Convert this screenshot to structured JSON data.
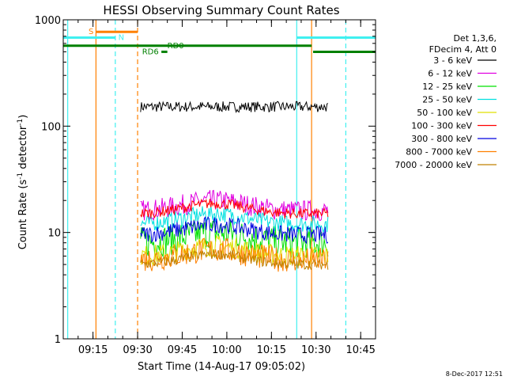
{
  "footer_timestamp": "8-Dec-2017 12:51",
  "colors": {
    "black": "#000000",
    "magenta": "#e000e0",
    "green": "#00e000",
    "cyan": "#00e0e0",
    "yellow": "#e0e000",
    "red": "#ff0000",
    "blue": "#0000e0",
    "orange": "#ff8000",
    "brown": "#c08000",
    "dark_green": "#008000",
    "light_cyan": "#40f0f0",
    "axis": "#000000"
  },
  "chart_data": {
    "type": "line",
    "title": "HESSI Observing Summary Count Rates",
    "xlabel": "Start Time (14-Aug-17 09:05:02)",
    "ylabel_prefix": "Count Rate (s",
    "ylabel_exp": "-1",
    "ylabel_mid": " detector",
    "ylabel_suffix": ")",
    "yscale": "log",
    "ylim": [
      1,
      1000
    ],
    "x_ticks": [
      "09:15",
      "09:30",
      "09:45",
      "10:00",
      "10:15",
      "10:30",
      "10:45"
    ],
    "x_tick_minutes": [
      15,
      30,
      45,
      60,
      75,
      90,
      105
    ],
    "xlim_minutes": [
      5,
      110
    ],
    "y_ticks": [
      "1",
      "10",
      "100",
      "1000"
    ],
    "y_tick_values": [
      1,
      10,
      100,
      1000
    ],
    "legend_header": [
      "Det 1,3,6,",
      "FDecim 4, Att 0"
    ],
    "data_window_minutes": [
      31,
      94
    ],
    "series": [
      {
        "name": "3 - 6 keV",
        "color": "#000000",
        "level": 152,
        "noise": 0.05
      },
      {
        "name": "6 - 12 keV",
        "color": "#e000e0",
        "level": 16,
        "noise": 0.1
      },
      {
        "name": "12 - 25 keV",
        "color": "#00e000",
        "level": 8,
        "noise": 0.15
      },
      {
        "name": "25 - 50 keV",
        "color": "#00e0e0",
        "level": 12,
        "noise": 0.08
      },
      {
        "name": "50 - 100 keV",
        "color": "#e0e000",
        "level": 6,
        "noise": 0.1
      },
      {
        "name": "100 - 300 keV",
        "color": "#ff0000",
        "level": 15,
        "noise": 0.05
      },
      {
        "name": "300 - 800 keV",
        "color": "#0000e0",
        "level": 9.5,
        "noise": 0.08
      },
      {
        "name": "800 - 7000 keV",
        "color": "#ff8000",
        "level": 5.5,
        "noise": 0.12
      },
      {
        "name": "7000 - 20000 keV",
        "color": "#c08000",
        "level": 5,
        "noise": 0.05
      }
    ],
    "bump_center_minutes": 56,
    "bump_width_minutes": 14,
    "bump_amplitude": 0.25,
    "vertical_lines": [
      {
        "minute": 6.5,
        "color": "#40f0f0",
        "dash": false
      },
      {
        "minute": 16,
        "color": "#ff8000",
        "dash": false
      },
      {
        "minute": 22.5,
        "color": "#40f0f0",
        "dash": true
      },
      {
        "minute": 30,
        "color": "#ff8000",
        "dash": true
      },
      {
        "minute": 83.5,
        "color": "#40f0f0",
        "dash": false
      },
      {
        "minute": 88.5,
        "color": "#ff8000",
        "dash": false
      },
      {
        "minute": 100,
        "color": "#40f0f0",
        "dash": true
      }
    ],
    "annotation_bars": [
      {
        "label": "S",
        "color": "#ff8000",
        "from": 16,
        "to": 30,
        "y": 770,
        "label_at": 13.5
      },
      {
        "label": "N",
        "color": "#40f0f0",
        "from": 5,
        "to": 22.5,
        "y": 680,
        "label_at": 23.5
      },
      {
        "label": "N",
        "color": "#40f0f0",
        "from": 83.5,
        "to": 110,
        "y": 680,
        "label_at": null
      },
      {
        "label": "RD0",
        "color": "#008000",
        "from": 5,
        "to": 88.5,
        "y": 570,
        "label_at": 40
      },
      {
        "label": "RD6",
        "color": "#008000",
        "from": 38,
        "to": 40,
        "y": 500,
        "label_at": 31.5
      },
      {
        "label": "",
        "color": "#008000",
        "from": 89,
        "to": 110,
        "y": 500,
        "label_at": null
      }
    ]
  }
}
